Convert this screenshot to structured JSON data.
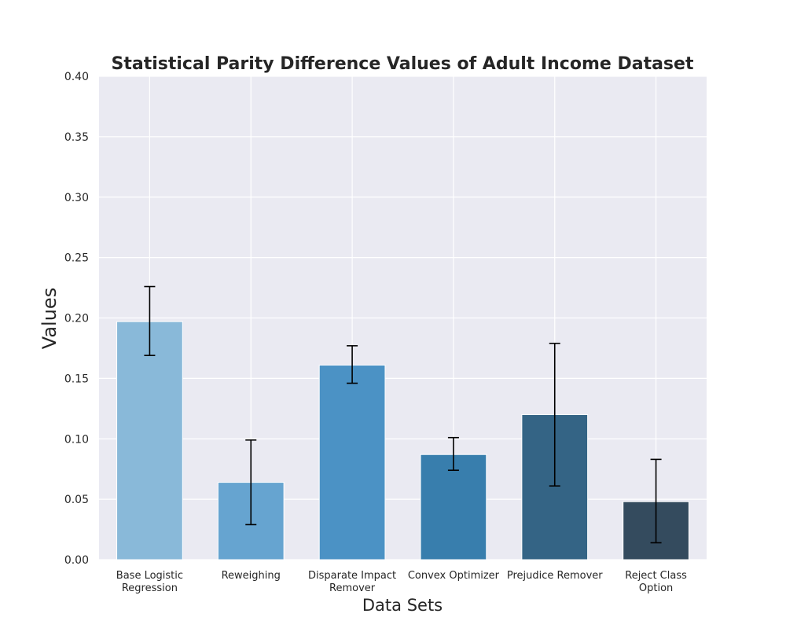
{
  "chart_data": {
    "type": "bar",
    "title": "Statistical Parity Difference Values of Adult Income Dataset",
    "xlabel": "Data Sets",
    "ylabel": "Values",
    "ylim": [
      0,
      0.4
    ],
    "yticks": [
      "0.00",
      "0.05",
      "0.10",
      "0.15",
      "0.20",
      "0.25",
      "0.30",
      "0.35",
      "0.40"
    ],
    "ytick_values": [
      0,
      0.05,
      0.1,
      0.15,
      0.2,
      0.25,
      0.3,
      0.35,
      0.4
    ],
    "grid": true,
    "categories": [
      [
        "Base Logistic",
        "Regression"
      ],
      [
        "Reweighing"
      ],
      [
        "Disparate Impact",
        "Remover"
      ],
      [
        "Convex Optimizer"
      ],
      [
        "Prejudice Remover"
      ],
      [
        "Reject Class",
        "Option"
      ]
    ],
    "values": [
      0.197,
      0.064,
      0.161,
      0.087,
      0.12,
      0.048
    ],
    "error_low": [
      0.169,
      0.029,
      0.146,
      0.074,
      0.061,
      0.014
    ],
    "error_high": [
      0.226,
      0.099,
      0.177,
      0.101,
      0.179,
      0.083
    ],
    "colors": [
      "#89b9d9",
      "#66a4d0",
      "#4b92c5",
      "#387ead",
      "#346485",
      "#344b5e"
    ],
    "plot_background": "#eaeaf2",
    "grid_color": "#ffffff",
    "error_color": "#000000"
  }
}
